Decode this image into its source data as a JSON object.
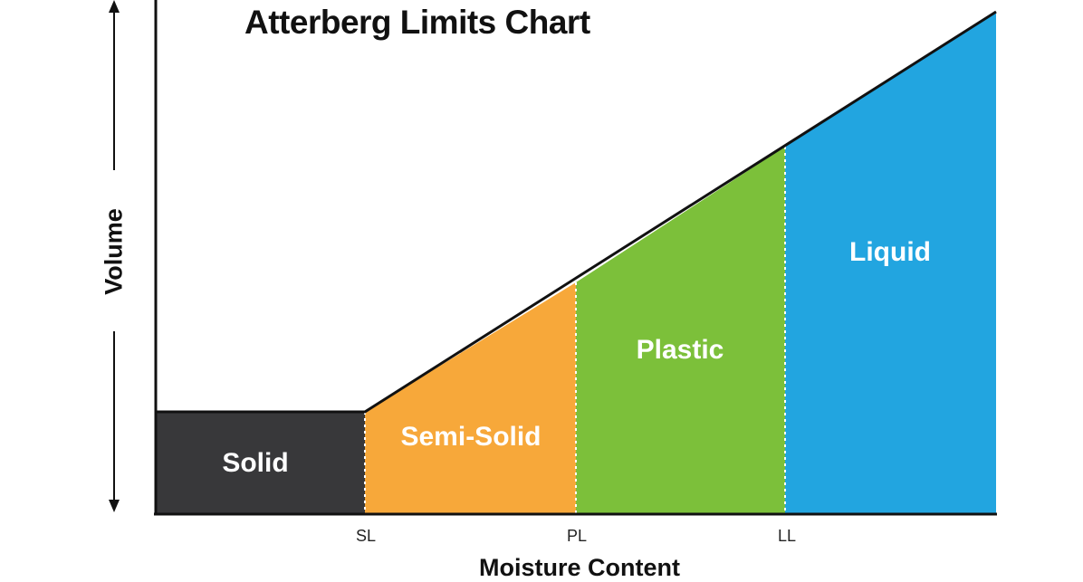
{
  "title": "Atterberg Limits Chart",
  "y_axis_label": "Volume",
  "x_axis_label": "Moisture Content",
  "limits": [
    {
      "key": "sl",
      "label": "SL"
    },
    {
      "key": "pl",
      "label": "PL"
    },
    {
      "key": "ll",
      "label": "LL"
    }
  ],
  "zones": [
    {
      "key": "solid",
      "label": "Solid",
      "color": "#38383a"
    },
    {
      "key": "semi_solid",
      "label": "Semi-Solid",
      "color": "#f7a83a"
    },
    {
      "key": "plastic",
      "label": "Plastic",
      "color": "#7cc03a"
    },
    {
      "key": "liquid",
      "label": "Liquid",
      "color": "#22a5e0"
    }
  ]
}
